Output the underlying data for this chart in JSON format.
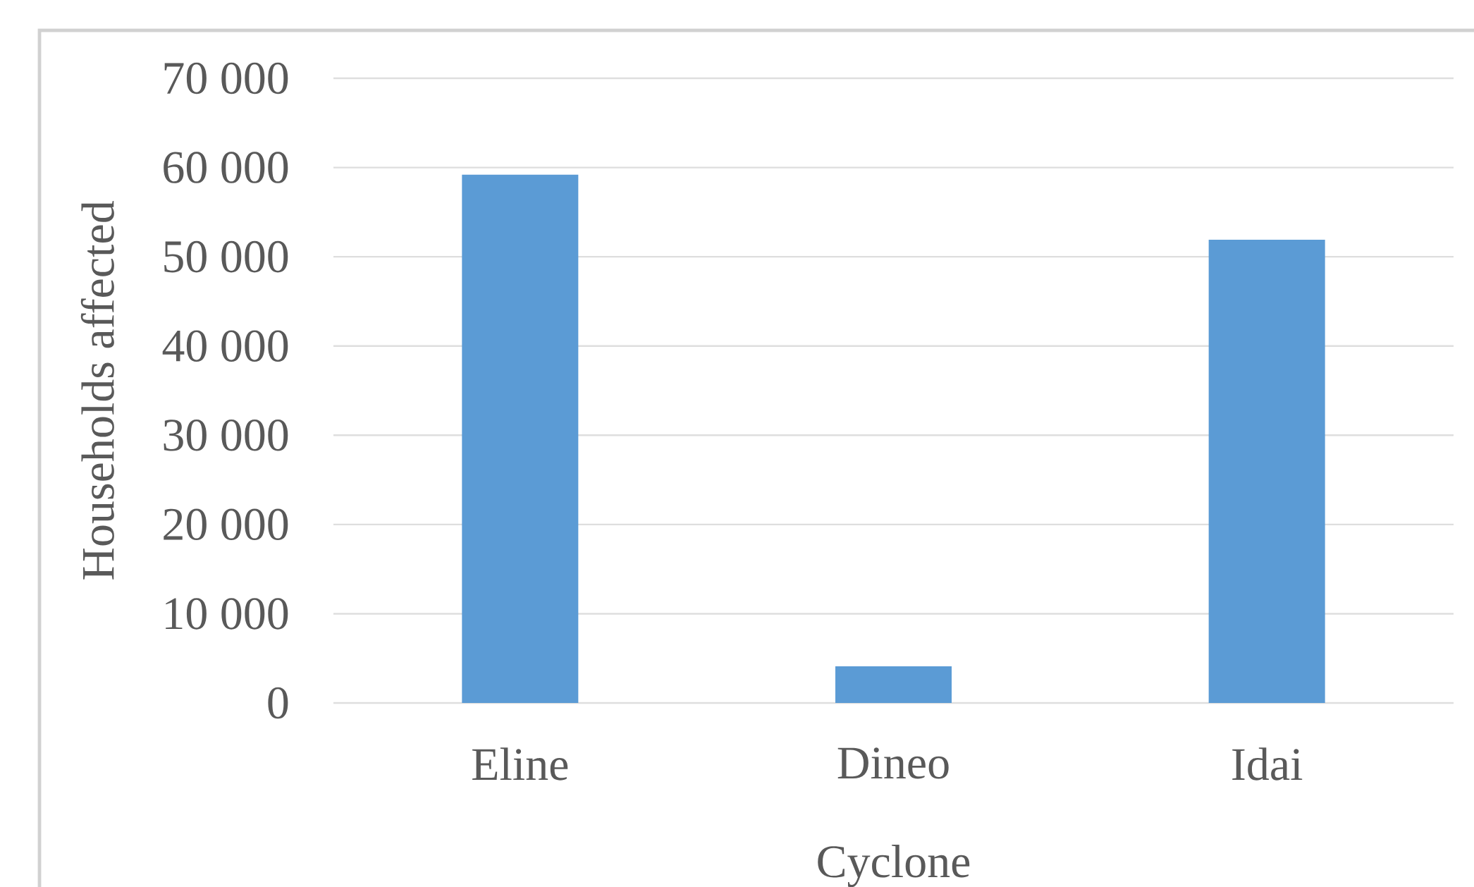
{
  "chart_data": {
    "type": "bar",
    "xlabel": "Cyclone",
    "ylabel": "Households affected",
    "categories": [
      "Eline",
      "Dineo",
      "Idai"
    ],
    "values": [
      59200,
      4100,
      51900
    ],
    "color": "#5b9bd5",
    "ylim": [
      0,
      70000
    ],
    "yticks": [
      {
        "value": 0,
        "label": "0"
      },
      {
        "value": 10000,
        "label": "10 000"
      },
      {
        "value": 20000,
        "label": "20 000"
      },
      {
        "value": 30000,
        "label": "30 000"
      },
      {
        "value": 40000,
        "label": "40 000"
      },
      {
        "value": 50000,
        "label": "50 000"
      },
      {
        "value": 60000,
        "label": "60 000"
      },
      {
        "value": 70000,
        "label": "70 000"
      }
    ],
    "grid": "y"
  }
}
